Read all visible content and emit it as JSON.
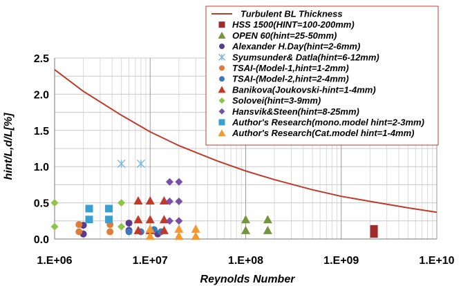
{
  "chart_data": {
    "type": "scatter",
    "xlabel": "Reynolds Number",
    "ylabel": "hint/L,d/L[%]",
    "x_scale": "log",
    "xlim": [
      1000000,
      10000000000
    ],
    "ylim": [
      0,
      2.5
    ],
    "x_ticks": [
      "1.E+06",
      "1.E+07",
      "1.E+08",
      "1.E+09",
      "1.E+10"
    ],
    "y_ticks": [
      "0.0",
      "0.5",
      "1.0",
      "1.5",
      "2.0",
      "2.5"
    ],
    "grid": true,
    "legend_position": "top-right",
    "curve": {
      "name": "Turbulent BL Thickness",
      "color": "#c0392b",
      "x": [
        1000000,
        2000000,
        5000000,
        10000000,
        20000000,
        50000000,
        100000000,
        200000000,
        500000000,
        1000000000,
        2000000000,
        5000000000,
        10000000000
      ],
      "y": [
        2.34,
        2.04,
        1.71,
        1.48,
        1.29,
        1.08,
        0.94,
        0.82,
        0.68,
        0.59,
        0.52,
        0.43,
        0.37
      ]
    },
    "series": [
      {
        "name": "HSS 1500(HINT=100-200mm)",
        "marker": "square",
        "color": "#9e2a2b",
        "points": [
          [
            2200000000,
            0.07
          ],
          [
            2200000000,
            0.14
          ]
        ]
      },
      {
        "name": "OPEN 60(hint=25-50mm)",
        "marker": "triangle",
        "color": "#77933c",
        "points": [
          [
            100000000,
            0.12
          ],
          [
            100000000,
            0.27
          ],
          [
            170000000,
            0.12
          ],
          [
            170000000,
            0.27
          ]
        ]
      },
      {
        "name": "Alexander H.Day(hint=2-6mm)",
        "marker": "circle",
        "color": "#5b3a8c",
        "points": [
          [
            2000000,
            0.07
          ],
          [
            2000000,
            0.19
          ],
          [
            6000000,
            0.22
          ],
          [
            6000000,
            0.12
          ],
          [
            12000000,
            0.07
          ]
        ]
      },
      {
        "name": "Syumsunder& Datla(hint=6-12mm)",
        "marker": "x",
        "color": "#7fb8d8",
        "points": [
          [
            5000000,
            1.04
          ],
          [
            8000000,
            1.04
          ]
        ]
      },
      {
        "name": "TSAI-(Model-1,hint=1-2mm)",
        "marker": "circle",
        "color": "#e07b39",
        "points": [
          [
            1800000,
            0.1
          ],
          [
            1800000,
            0.2
          ],
          [
            3800000,
            0.1
          ],
          [
            3800000,
            0.2
          ]
        ]
      },
      {
        "name": "TSAI-(Model-2,hint=2-4mm)",
        "marker": "circle",
        "color": "#3a78c2",
        "points": [
          [
            6000000,
            0.1
          ],
          [
            8000000,
            0.1
          ],
          [
            11000000,
            0.13
          ],
          [
            13000000,
            0.1
          ]
        ]
      },
      {
        "name": "Banikova(Joukovski-hint=1-4mm)",
        "marker": "triangle",
        "color": "#c0392b",
        "points": [
          [
            7500000,
            0.12
          ],
          [
            7500000,
            0.27
          ],
          [
            7500000,
            0.53
          ],
          [
            10000000,
            0.12
          ],
          [
            10000000,
            0.27
          ],
          [
            10000000,
            0.53
          ],
          [
            14000000,
            0.12
          ],
          [
            14000000,
            0.27
          ],
          [
            14000000,
            0.53
          ]
        ]
      },
      {
        "name": "Solovei(hint=3-9mm)",
        "marker": "diamond",
        "color": "#8ec448",
        "points": [
          [
            1000000,
            0.17
          ],
          [
            1000000,
            0.5
          ],
          [
            5000000,
            0.17
          ],
          [
            5000000,
            0.5
          ]
        ]
      },
      {
        "name": "Hansvik&Steen(hint=8-25mm)",
        "marker": "diamond",
        "color": "#7a4fa6",
        "points": [
          [
            16000000,
            0.25
          ],
          [
            20000000,
            0.25
          ],
          [
            16000000,
            0.52
          ],
          [
            20000000,
            0.52
          ],
          [
            16000000,
            0.79
          ],
          [
            20000000,
            0.79
          ]
        ]
      },
      {
        "name": "Author's Research(mono.model hint=2-3mm)",
        "marker": "square",
        "color": "#3aa0d0",
        "points": [
          [
            2300000,
            0.27
          ],
          [
            2300000,
            0.42
          ],
          [
            3700000,
            0.27
          ],
          [
            3700000,
            0.42
          ]
        ]
      },
      {
        "name": "Author's Research(Cat.model hint=1-4mm)",
        "marker": "triangle",
        "color": "#f29a2e",
        "points": [
          [
            10000000,
            0.04
          ],
          [
            10000000,
            0.14
          ],
          [
            20000000,
            0.04
          ],
          [
            20000000,
            0.14
          ],
          [
            30000000,
            0.04
          ],
          [
            30000000,
            0.14
          ]
        ]
      }
    ]
  }
}
